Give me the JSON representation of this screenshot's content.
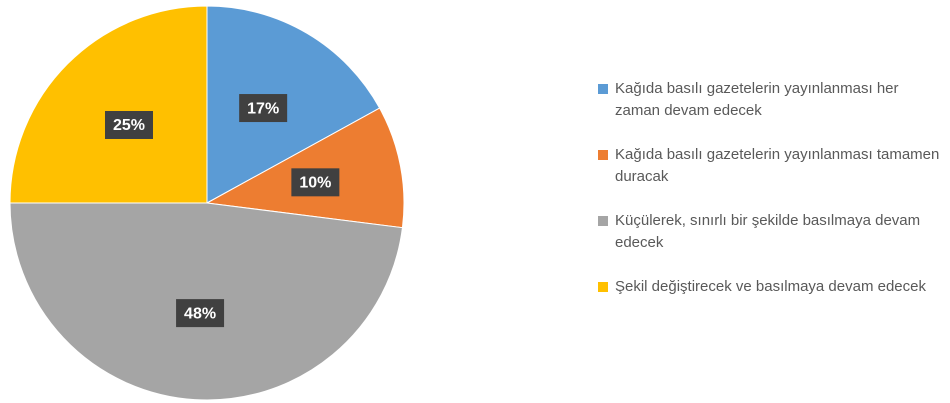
{
  "chart_data": {
    "type": "pie",
    "categories": [
      "Kağıda basılı gazetelerin yayınlanması her zaman devam edecek",
      "Kağıda basılı gazetelerin yayınlanması tamamen duracak",
      "Küçülerek, sınırlı bir şekilde basılmaya devam edecek",
      "Şekil değiştirecek ve basılmaya devam edecek"
    ],
    "values": [
      17,
      10,
      48,
      25
    ],
    "value_labels": [
      "17%",
      "10%",
      "48%",
      "25%"
    ],
    "colors": [
      "#5b9bd5",
      "#ed7d31",
      "#a5a5a5",
      "#ffc000"
    ],
    "legend": "right"
  }
}
